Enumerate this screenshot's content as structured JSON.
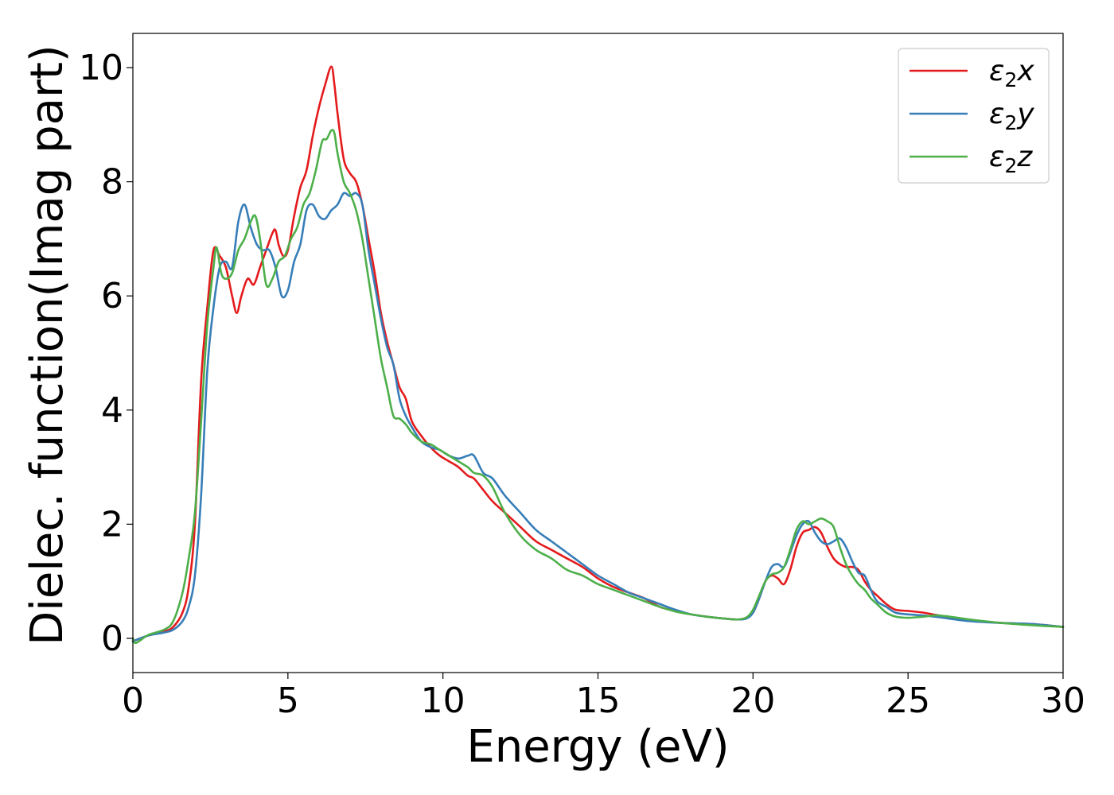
{
  "chart_data": {
    "type": "line",
    "xlabel": "Energy (eV)",
    "ylabel": "Dielec. function(Imag part)",
    "xlim": [
      0,
      30
    ],
    "ylim": [
      -0.6,
      10.6
    ],
    "xticks": [
      0,
      5,
      10,
      15,
      20,
      25,
      30
    ],
    "yticks": [
      0,
      2,
      4,
      6,
      8,
      10
    ],
    "grid": false,
    "legend_position": "top-right",
    "series": [
      {
        "name": "ε2x",
        "legend": {
          "base": "ε",
          "sub": "2",
          "axis": "x"
        },
        "color": "#e41a1c",
        "x": [
          0,
          0.5,
          1.0,
          1.3,
          1.6,
          1.8,
          2.0,
          2.2,
          2.4,
          2.6,
          2.8,
          3.0,
          3.2,
          3.35,
          3.5,
          3.7,
          3.9,
          4.1,
          4.3,
          4.5,
          4.6,
          4.7,
          4.85,
          5.0,
          5.2,
          5.4,
          5.6,
          5.8,
          6.0,
          6.2,
          6.4,
          6.5,
          6.6,
          6.8,
          7.0,
          7.2,
          7.4,
          7.6,
          7.8,
          8.0,
          8.2,
          8.4,
          8.6,
          8.8,
          9.0,
          9.3,
          9.6,
          9.9,
          10.2,
          10.5,
          10.8,
          11.0,
          11.3,
          11.6,
          12.0,
          12.5,
          13.0,
          13.5,
          14.0,
          14.5,
          15.0,
          15.5,
          16.0,
          16.5,
          17.0,
          17.5,
          18.0,
          18.5,
          19.0,
          19.5,
          19.8,
          20.0,
          20.2,
          20.4,
          20.6,
          20.8,
          21.0,
          21.2,
          21.4,
          21.6,
          21.8,
          22.0,
          22.2,
          22.4,
          22.6,
          22.8,
          23.0,
          23.2,
          23.4,
          23.6,
          23.8,
          24.0,
          24.3,
          24.6,
          25.0,
          25.5,
          26.0,
          27.0,
          28.0,
          29.0,
          30.0
        ],
        "y": [
          -0.05,
          0.05,
          0.12,
          0.2,
          0.45,
          0.9,
          2.0,
          4.5,
          5.8,
          6.8,
          6.7,
          6.5,
          6.0,
          5.7,
          6.0,
          6.3,
          6.2,
          6.5,
          6.8,
          7.1,
          7.15,
          6.9,
          6.7,
          6.8,
          7.4,
          7.9,
          8.2,
          8.8,
          9.3,
          9.7,
          10.02,
          9.7,
          9.2,
          8.4,
          8.15,
          8.0,
          7.6,
          7.0,
          6.4,
          5.7,
          5.2,
          4.8,
          4.4,
          4.2,
          3.8,
          3.55,
          3.35,
          3.2,
          3.1,
          3.0,
          2.85,
          2.8,
          2.6,
          2.4,
          2.2,
          1.95,
          1.7,
          1.55,
          1.4,
          1.25,
          1.05,
          0.9,
          0.8,
          0.7,
          0.55,
          0.48,
          0.42,
          0.38,
          0.35,
          0.33,
          0.36,
          0.45,
          0.7,
          1.0,
          1.1,
          1.05,
          0.95,
          1.2,
          1.6,
          1.85,
          1.9,
          1.95,
          1.85,
          1.6,
          1.4,
          1.3,
          1.25,
          1.25,
          1.2,
          1.0,
          0.85,
          0.75,
          0.6,
          0.5,
          0.48,
          0.45,
          0.4,
          0.32,
          0.27,
          0.25,
          0.2
        ]
      },
      {
        "name": "ε2y",
        "legend": {
          "base": "ε",
          "sub": "2",
          "axis": "y"
        },
        "color": "#377eb8",
        "x": [
          0,
          0.5,
          1.0,
          1.3,
          1.6,
          1.8,
          2.0,
          2.2,
          2.4,
          2.6,
          2.8,
          3.0,
          3.2,
          3.4,
          3.6,
          3.8,
          4.0,
          4.2,
          4.4,
          4.6,
          4.8,
          5.0,
          5.2,
          5.4,
          5.6,
          5.8,
          6.0,
          6.2,
          6.4,
          6.6,
          6.8,
          7.0,
          7.2,
          7.4,
          7.6,
          7.8,
          8.0,
          8.2,
          8.4,
          8.6,
          8.8,
          9.0,
          9.3,
          9.6,
          9.9,
          10.2,
          10.5,
          10.8,
          11.0,
          11.3,
          11.6,
          12.0,
          12.5,
          13.0,
          13.5,
          14.0,
          14.5,
          15.0,
          15.5,
          16.0,
          16.5,
          17.0,
          17.5,
          18.0,
          18.5,
          19.0,
          19.5,
          19.8,
          20.0,
          20.2,
          20.4,
          20.6,
          20.8,
          21.0,
          21.2,
          21.4,
          21.6,
          21.8,
          22.0,
          22.2,
          22.4,
          22.6,
          22.8,
          23.0,
          23.2,
          23.4,
          23.6,
          23.8,
          24.0,
          24.3,
          24.6,
          25.0,
          25.5,
          26.0,
          27.0,
          28.0,
          29.0,
          30.0
        ],
        "y": [
          -0.05,
          0.05,
          0.1,
          0.15,
          0.3,
          0.55,
          1.1,
          2.5,
          4.7,
          5.8,
          6.5,
          6.6,
          6.5,
          7.3,
          7.6,
          7.2,
          6.9,
          6.8,
          6.8,
          6.5,
          6.0,
          6.1,
          6.6,
          6.9,
          7.5,
          7.6,
          7.4,
          7.35,
          7.5,
          7.6,
          7.8,
          7.75,
          7.8,
          7.6,
          6.8,
          6.2,
          5.6,
          5.1,
          4.8,
          4.2,
          3.9,
          3.7,
          3.45,
          3.35,
          3.3,
          3.2,
          3.15,
          3.2,
          3.2,
          2.9,
          2.8,
          2.5,
          2.2,
          1.9,
          1.7,
          1.5,
          1.3,
          1.1,
          0.95,
          0.8,
          0.7,
          0.6,
          0.5,
          0.42,
          0.38,
          0.35,
          0.33,
          0.35,
          0.45,
          0.7,
          1.0,
          1.25,
          1.3,
          1.25,
          1.5,
          1.8,
          2.0,
          2.05,
          1.85,
          1.7,
          1.65,
          1.7,
          1.75,
          1.6,
          1.35,
          1.15,
          1.1,
          0.85,
          0.65,
          0.55,
          0.45,
          0.42,
          0.4,
          0.37,
          0.3,
          0.27,
          0.25,
          0.2
        ]
      },
      {
        "name": "ε2z",
        "legend": {
          "base": "ε",
          "sub": "2",
          "axis": "z"
        },
        "color": "#4daf4a",
        "x": [
          0,
          0.1,
          0.5,
          1.0,
          1.3,
          1.6,
          1.8,
          2.0,
          2.2,
          2.4,
          2.6,
          2.7,
          2.85,
          3.0,
          3.2,
          3.4,
          3.6,
          3.8,
          3.95,
          4.1,
          4.3,
          4.5,
          4.7,
          4.9,
          5.1,
          5.3,
          5.5,
          5.7,
          5.9,
          6.1,
          6.25,
          6.4,
          6.5,
          6.6,
          6.8,
          7.0,
          7.2,
          7.4,
          7.6,
          7.8,
          8.0,
          8.2,
          8.4,
          8.6,
          8.8,
          9.0,
          9.3,
          9.6,
          9.9,
          10.2,
          10.5,
          10.8,
          11.0,
          11.3,
          11.6,
          12.0,
          12.5,
          13.0,
          13.5,
          14.0,
          14.5,
          15.0,
          15.5,
          16.0,
          16.5,
          17.0,
          17.5,
          18.0,
          18.5,
          19.0,
          19.5,
          19.8,
          20.0,
          20.2,
          20.4,
          20.6,
          20.8,
          21.0,
          21.2,
          21.4,
          21.6,
          21.8,
          22.0,
          22.2,
          22.4,
          22.6,
          22.8,
          23.0,
          23.2,
          23.4,
          23.6,
          23.8,
          24.0,
          24.3,
          24.6,
          25.0,
          25.5,
          26.0,
          27.0,
          28.0,
          29.0,
          30.0
        ],
        "y": [
          0,
          -0.08,
          0.06,
          0.15,
          0.3,
          0.8,
          1.4,
          2.2,
          3.8,
          5.5,
          6.5,
          6.85,
          6.4,
          6.3,
          6.4,
          6.8,
          7.0,
          7.3,
          7.4,
          7.0,
          6.2,
          6.3,
          6.6,
          6.7,
          7.0,
          7.2,
          7.6,
          7.8,
          8.2,
          8.7,
          8.75,
          8.9,
          8.85,
          8.5,
          8.0,
          7.8,
          7.5,
          7.0,
          6.3,
          5.6,
          4.9,
          4.4,
          3.9,
          3.85,
          3.75,
          3.6,
          3.45,
          3.4,
          3.3,
          3.2,
          3.1,
          3.0,
          2.9,
          2.85,
          2.65,
          2.2,
          1.8,
          1.55,
          1.4,
          1.2,
          1.1,
          0.95,
          0.85,
          0.75,
          0.65,
          0.55,
          0.47,
          0.42,
          0.38,
          0.35,
          0.33,
          0.37,
          0.5,
          0.75,
          1.0,
          1.12,
          1.15,
          1.25,
          1.55,
          1.9,
          2.05,
          2.0,
          2.05,
          2.1,
          2.05,
          1.95,
          1.6,
          1.3,
          1.1,
          0.95,
          0.85,
          0.7,
          0.6,
          0.45,
          0.38,
          0.36,
          0.38,
          0.4,
          0.33,
          0.27,
          0.23,
          0.2
        ]
      }
    ]
  }
}
